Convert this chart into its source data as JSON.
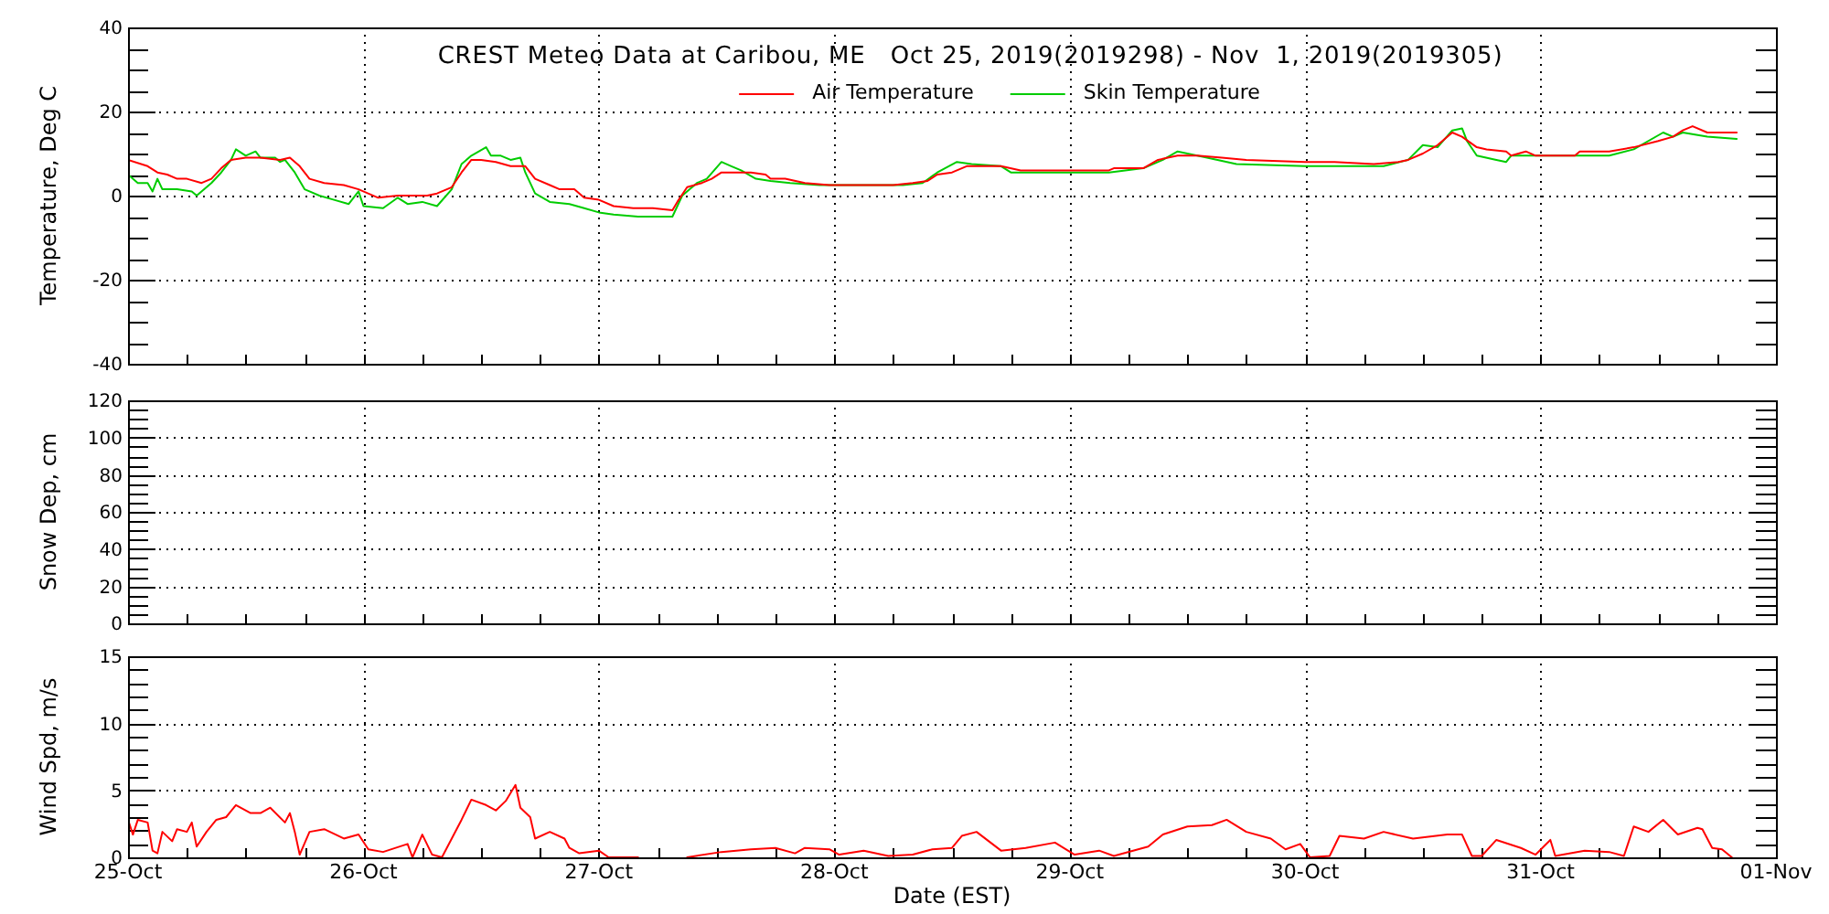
{
  "chart_data": [
    {
      "type": "line",
      "title": "CREST Meteo Data at Caribou, ME   Oct 25, 2019(2019298) - Nov  1, 2019(2019305)",
      "ylabel": "Temperature, Deg C",
      "legend": "top",
      "grid": true,
      "tick_labels": "y",
      "xlim": [
        "2019-10-25",
        "2019-11-01"
      ],
      "xticks": [
        {
          "value": "2019-10-25",
          "label": null
        },
        {
          "value": "2019-10-25T06:00",
          "label": null
        },
        {
          "value": "2019-10-25T12:00",
          "label": null
        },
        {
          "value": "2019-10-25T18:00",
          "label": null
        },
        {
          "value": "2019-10-26",
          "label": null
        },
        {
          "value": "2019-10-26T06:00",
          "label": null
        },
        {
          "value": "2019-10-26T12:00",
          "label": null
        },
        {
          "value": "2019-10-26T18:00",
          "label": null
        },
        {
          "value": "2019-10-27",
          "label": null
        },
        {
          "value": "2019-10-27T06:00",
          "label": null
        },
        {
          "value": "2019-10-27T12:00",
          "label": null
        },
        {
          "value": "2019-10-27T18:00",
          "label": null
        },
        {
          "value": "2019-10-28",
          "label": null
        },
        {
          "value": "2019-10-28T06:00",
          "label": null
        },
        {
          "value": "2019-10-28T12:00",
          "label": null
        },
        {
          "value": "2019-10-28T18:00",
          "label": null
        },
        {
          "value": "2019-10-29",
          "label": null
        },
        {
          "value": "2019-10-29T06:00",
          "label": null
        },
        {
          "value": "2019-10-29T12:00",
          "label": null
        },
        {
          "value": "2019-10-29T18:00",
          "label": null
        },
        {
          "value": "2019-10-30",
          "label": null
        },
        {
          "value": "2019-10-30T06:00",
          "label": null
        },
        {
          "value": "2019-10-30T12:00",
          "label": null
        },
        {
          "value": "2019-10-30T18:00",
          "label": null
        },
        {
          "value": "2019-10-31",
          "label": null
        },
        {
          "value": "2019-10-31T06:00",
          "label": null
        },
        {
          "value": "2019-10-31T12:00",
          "label": null
        },
        {
          "value": "2019-10-31T18:00",
          "label": null
        },
        {
          "value": "2019-11-01",
          "label": null
        }
      ],
      "ylim": [
        -40,
        40
      ],
      "yticks": [
        -40,
        {
          "value": -35,
          "label": null
        },
        {
          "value": -30,
          "label": null
        },
        {
          "value": -25,
          "label": null
        },
        -20,
        {
          "value": -15,
          "label": null
        },
        {
          "value": -10,
          "label": null
        },
        {
          "value": -5,
          "label": null
        },
        0,
        {
          "value": 5,
          "label": null
        },
        {
          "value": 10,
          "label": null
        },
        {
          "value": 15,
          "label": null
        },
        20,
        {
          "value": 25,
          "label": null
        },
        {
          "value": 30,
          "label": null
        },
        {
          "value": 35,
          "label": null
        },
        40
      ],
      "series": [
        {
          "name": "Air Temperature",
          "color": "#ff0000",
          "x": [
            "2019-10-25T00:00",
            "2019-10-25T02:00",
            "2019-10-25T03:00",
            "2019-10-25T04:00",
            "2019-10-25T05:00",
            "2019-10-25T06:00",
            "2019-10-25T07:30",
            "2019-10-25T08:30",
            "2019-10-25T09:30",
            "2019-10-25T10:30",
            "2019-10-25T12:00",
            "2019-10-25T13:30",
            "2019-10-25T15:30",
            "2019-10-25T16:30",
            "2019-10-25T17:30",
            "2019-10-25T18:30",
            "2019-10-25T20:00",
            "2019-10-25T22:00",
            "2019-10-25T23:30",
            "2019-10-26T01:30",
            "2019-10-26T03:30",
            "2019-10-26T06:30",
            "2019-10-26T07:30",
            "2019-10-26T09:00",
            "2019-10-26T10:00",
            "2019-10-26T11:00",
            "2019-10-26T12:00",
            "2019-10-26T13:30",
            "2019-10-26T15:00",
            "2019-10-26T16:30",
            "2019-10-26T17:30",
            "2019-10-26T19:00",
            "2019-10-26T20:00",
            "2019-10-26T21:30",
            "2019-10-26T22:30",
            "2019-10-27T00:00",
            "2019-10-27T01:30",
            "2019-10-27T03:30",
            "2019-10-27T05:30",
            "2019-10-27T07:30",
            "2019-10-27T08:00",
            "2019-10-27T09:00",
            "2019-10-27T10:30",
            "2019-10-27T11:30",
            "2019-10-27T12:30",
            "2019-10-27T15:30",
            "2019-10-27T17:00",
            "2019-10-27T17:30",
            "2019-10-27T19:00",
            "2019-10-27T21:00",
            "2019-10-27T23:30",
            "2019-10-28T02:00",
            "2019-10-28T06:00",
            "2019-10-28T08:00",
            "2019-10-28T09:30",
            "2019-10-28T10:30",
            "2019-10-28T12:00",
            "2019-10-28T13:30",
            "2019-10-28T17:00",
            "2019-10-28T19:00",
            "2019-10-28T23:00",
            "2019-10-29T04:00",
            "2019-10-29T04:30",
            "2019-10-29T07:30",
            "2019-10-29T09:00",
            "2019-10-29T11:00",
            "2019-10-29T13:00",
            "2019-10-29T15:30",
            "2019-10-29T18:00",
            "2019-10-30T00:00",
            "2019-10-30T03:00",
            "2019-10-30T07:00",
            "2019-10-30T09:30",
            "2019-10-30T10:30",
            "2019-10-30T12:00",
            "2019-10-30T13:30",
            "2019-10-30T15:00",
            "2019-10-30T16:00",
            "2019-10-30T17:30",
            "2019-10-30T18:30",
            "2019-10-30T20:30",
            "2019-10-30T21:00",
            "2019-10-30T22:30",
            "2019-10-30T23:30",
            "2019-10-31T03:30",
            "2019-10-31T04:00",
            "2019-10-31T07:00",
            "2019-10-31T09:30",
            "2019-10-31T12:00",
            "2019-10-31T13:30",
            "2019-10-31T14:30",
            "2019-10-31T15:30",
            "2019-10-31T17:00",
            "2019-10-31T20:00"
          ],
          "values": [
            8.5,
            7,
            5.5,
            5,
            4,
            4,
            3,
            4,
            6.5,
            8.5,
            9,
            9,
            8.5,
            9,
            7,
            4,
            3,
            2.5,
            1.5,
            -0.5,
            0,
            0,
            0.5,
            2,
            5.5,
            8.5,
            8.5,
            8,
            7,
            7,
            4,
            2.5,
            1.5,
            1.5,
            -0.5,
            -1,
            -2.5,
            -3,
            -3,
            -3.5,
            -1.5,
            2,
            3,
            4,
            5.5,
            5.5,
            5,
            4,
            4,
            3,
            2.5,
            2.5,
            2.5,
            3,
            3.5,
            5,
            5.5,
            7,
            7,
            6,
            6,
            6,
            6.5,
            6.5,
            8.5,
            9.5,
            9.5,
            9,
            8.5,
            8,
            8,
            7.5,
            8,
            8.5,
            10,
            12,
            15,
            14,
            11.5,
            11,
            10.5,
            9.5,
            10.5,
            9.5,
            9.5,
            10.5,
            10.5,
            11.5,
            13,
            14,
            15.5,
            16.5,
            15,
            15
          ]
        },
        {
          "name": "Skin Temperature",
          "color": "#00cc00",
          "x": [
            "2019-10-25T00:00",
            "2019-10-25T01:00",
            "2019-10-25T02:00",
            "2019-10-25T02:30",
            "2019-10-25T03:00",
            "2019-10-25T03:30",
            "2019-10-25T05:00",
            "2019-10-25T06:30",
            "2019-10-25T07:00",
            "2019-10-25T08:30",
            "2019-10-25T09:30",
            "2019-10-25T10:30",
            "2019-10-25T11:00",
            "2019-10-25T12:00",
            "2019-10-25T13:00",
            "2019-10-25T13:30",
            "2019-10-25T15:00",
            "2019-10-25T15:30",
            "2019-10-25T16:00",
            "2019-10-25T17:00",
            "2019-10-25T18:00",
            "2019-10-25T18:30",
            "2019-10-25T19:30",
            "2019-10-25T21:00",
            "2019-10-25T22:30",
            "2019-10-25T23:30",
            "2019-10-26T00:00",
            "2019-10-26T02:00",
            "2019-10-26T03:30",
            "2019-10-26T04:30",
            "2019-10-26T06:00",
            "2019-10-26T07:30",
            "2019-10-26T09:00",
            "2019-10-26T10:00",
            "2019-10-26T11:00",
            "2019-10-26T12:30",
            "2019-10-26T13:00",
            "2019-10-26T14:00",
            "2019-10-26T15:00",
            "2019-10-26T16:00",
            "2019-10-26T16:30",
            "2019-10-26T17:30",
            "2019-10-26T19:00",
            "2019-10-26T21:00",
            "2019-10-26T22:30",
            "2019-10-27T00:00",
            "2019-10-27T01:30",
            "2019-10-27T04:00",
            "2019-10-27T06:00",
            "2019-10-27T07:30",
            "2019-10-27T08:30",
            "2019-10-27T10:00",
            "2019-10-27T11:00",
            "2019-10-27T12:30",
            "2019-10-27T13:30",
            "2019-10-27T14:30",
            "2019-10-27T16:00",
            "2019-10-27T17:30",
            "2019-10-27T19:30",
            "2019-10-27T22:30",
            "2019-10-28T02:00",
            "2019-10-28T07:00",
            "2019-10-28T09:00",
            "2019-10-28T10:30",
            "2019-10-28T12:30",
            "2019-10-28T14:00",
            "2019-10-28T17:00",
            "2019-10-28T18:00",
            "2019-10-29T04:00",
            "2019-10-29T07:30",
            "2019-10-29T09:30",
            "2019-10-29T11:00",
            "2019-10-29T14:00",
            "2019-10-29T17:00",
            "2019-10-30T00:00",
            "2019-10-30T02:30",
            "2019-10-30T06:00",
            "2019-10-30T08:00",
            "2019-10-30T10:30",
            "2019-10-30T12:00",
            "2019-10-30T13:30",
            "2019-10-30T15:00",
            "2019-10-30T16:00",
            "2019-10-30T16:30",
            "2019-10-30T17:30",
            "2019-10-30T19:30",
            "2019-10-30T20:30",
            "2019-10-30T21:00",
            "2019-10-31T03:30",
            "2019-10-31T07:00",
            "2019-10-31T09:30",
            "2019-10-31T12:30",
            "2019-10-31T13:30",
            "2019-10-31T14:30",
            "2019-10-31T17:00",
            "2019-10-31T20:00"
          ],
          "values": [
            5,
            3,
            3,
            1,
            4,
            1.5,
            1.5,
            1,
            0,
            3,
            5.5,
            8.5,
            11,
            9.5,
            10.5,
            9,
            9,
            8,
            8.5,
            5.5,
            1.5,
            1,
            0,
            -1,
            -2,
            1,
            -2.5,
            -3,
            -0.5,
            -2,
            -1.5,
            -2.5,
            1.5,
            7.5,
            9.5,
            11.5,
            9.5,
            9.5,
            8.5,
            9,
            5.5,
            0.5,
            -1.5,
            -2,
            -3,
            -4,
            -4.5,
            -5,
            -5,
            -5,
            0,
            3,
            4,
            8,
            7,
            6,
            4,
            3.5,
            3,
            2.5,
            2.5,
            2.5,
            3,
            5.5,
            8,
            7.5,
            7,
            5.5,
            5.5,
            6.5,
            8.5,
            10.5,
            9,
            7.5,
            7,
            7,
            7,
            7,
            8.5,
            12,
            11.5,
            15.5,
            16,
            13,
            9.5,
            8.5,
            8,
            9.5,
            9.5,
            9.5,
            11,
            15,
            14,
            15,
            14,
            13.5
          ]
        }
      ]
    },
    {
      "type": "line",
      "ylabel": "Snow Dep, cm",
      "grid": true,
      "tick_labels": "y",
      "xlim": [
        "2019-10-25",
        "2019-11-01"
      ],
      "xticks": [
        {
          "value": "2019-10-25",
          "label": null
        },
        {
          "value": "2019-10-25T06:00",
          "label": null
        },
        {
          "value": "2019-10-25T12:00",
          "label": null
        },
        {
          "value": "2019-10-25T18:00",
          "label": null
        },
        {
          "value": "2019-10-26",
          "label": null
        },
        {
          "value": "2019-10-26T06:00",
          "label": null
        },
        {
          "value": "2019-10-26T12:00",
          "label": null
        },
        {
          "value": "2019-10-26T18:00",
          "label": null
        },
        {
          "value": "2019-10-27",
          "label": null
        },
        {
          "value": "2019-10-27T06:00",
          "label": null
        },
        {
          "value": "2019-10-27T12:00",
          "label": null
        },
        {
          "value": "2019-10-27T18:00",
          "label": null
        },
        {
          "value": "2019-10-28",
          "label": null
        },
        {
          "value": "2019-10-28T06:00",
          "label": null
        },
        {
          "value": "2019-10-28T12:00",
          "label": null
        },
        {
          "value": "2019-10-28T18:00",
          "label": null
        },
        {
          "value": "2019-10-29",
          "label": null
        },
        {
          "value": "2019-10-29T06:00",
          "label": null
        },
        {
          "value": "2019-10-29T12:00",
          "label": null
        },
        {
          "value": "2019-10-29T18:00",
          "label": null
        },
        {
          "value": "2019-10-30",
          "label": null
        },
        {
          "value": "2019-10-30T06:00",
          "label": null
        },
        {
          "value": "2019-10-30T12:00",
          "label": null
        },
        {
          "value": "2019-10-30T18:00",
          "label": null
        },
        {
          "value": "2019-10-31",
          "label": null
        },
        {
          "value": "2019-10-31T06:00",
          "label": null
        },
        {
          "value": "2019-10-31T12:00",
          "label": null
        },
        {
          "value": "2019-10-31T18:00",
          "label": null
        },
        {
          "value": "2019-11-01",
          "label": null
        }
      ],
      "ylim": [
        0,
        120
      ],
      "yticks": [
        0,
        {
          "value": 5,
          "label": null
        },
        {
          "value": 10,
          "label": null
        },
        {
          "value": 15,
          "label": null
        },
        20,
        {
          "value": 25,
          "label": null
        },
        {
          "value": 30,
          "label": null
        },
        {
          "value": 35,
          "label": null
        },
        40,
        {
          "value": 45,
          "label": null
        },
        {
          "value": 50,
          "label": null
        },
        {
          "value": 55,
          "label": null
        },
        60,
        {
          "value": 65,
          "label": null
        },
        {
          "value": 70,
          "label": null
        },
        {
          "value": 75,
          "label": null
        },
        80,
        {
          "value": 85,
          "label": null
        },
        {
          "value": 90,
          "label": null
        },
        {
          "value": 95,
          "label": null
        },
        100,
        {
          "value": 105,
          "label": null
        },
        {
          "value": 110,
          "label": null
        },
        {
          "value": 115,
          "label": null
        },
        120
      ]
    },
    {
      "type": "line",
      "xlabel": "Date (EST)",
      "ylabel": "Wind Spd, m/s",
      "grid": true,
      "xlim": [
        "2019-10-25",
        "2019-11-01"
      ],
      "xticks": [
        {
          "value": "2019-10-25",
          "label": "25-Oct"
        },
        {
          "value": "2019-10-25T06:00",
          "label": null
        },
        {
          "value": "2019-10-25T12:00",
          "label": null
        },
        {
          "value": "2019-10-25T18:00",
          "label": null
        },
        {
          "value": "2019-10-26",
          "label": "26-Oct"
        },
        {
          "value": "2019-10-26T06:00",
          "label": null
        },
        {
          "value": "2019-10-26T12:00",
          "label": null
        },
        {
          "value": "2019-10-26T18:00",
          "label": null
        },
        {
          "value": "2019-10-27",
          "label": "27-Oct"
        },
        {
          "value": "2019-10-27T06:00",
          "label": null
        },
        {
          "value": "2019-10-27T12:00",
          "label": null
        },
        {
          "value": "2019-10-27T18:00",
          "label": null
        },
        {
          "value": "2019-10-28",
          "label": "28-Oct"
        },
        {
          "value": "2019-10-28T06:00",
          "label": null
        },
        {
          "value": "2019-10-28T12:00",
          "label": null
        },
        {
          "value": "2019-10-28T18:00",
          "label": null
        },
        {
          "value": "2019-10-29",
          "label": "29-Oct"
        },
        {
          "value": "2019-10-29T06:00",
          "label": null
        },
        {
          "value": "2019-10-29T12:00",
          "label": null
        },
        {
          "value": "2019-10-29T18:00",
          "label": null
        },
        {
          "value": "2019-10-30",
          "label": "30-Oct"
        },
        {
          "value": "2019-10-30T06:00",
          "label": null
        },
        {
          "value": "2019-10-30T12:00",
          "label": null
        },
        {
          "value": "2019-10-30T18:00",
          "label": null
        },
        {
          "value": "2019-10-31",
          "label": "31-Oct"
        },
        {
          "value": "2019-10-31T06:00",
          "label": null
        },
        {
          "value": "2019-10-31T12:00",
          "label": null
        },
        {
          "value": "2019-10-31T18:00",
          "label": null
        },
        {
          "value": "2019-11-01",
          "label": "01-Nov"
        }
      ],
      "ylim": [
        0,
        15
      ],
      "yticks": [
        0,
        {
          "value": 1,
          "label": null
        },
        {
          "value": 2,
          "label": null
        },
        {
          "value": 3,
          "label": null
        },
        {
          "value": 4,
          "label": null
        },
        5,
        {
          "value": 6,
          "label": null
        },
        {
          "value": 7,
          "label": null
        },
        {
          "value": 8,
          "label": null
        },
        {
          "value": 9,
          "label": null
        },
        10,
        {
          "value": 11,
          "label": null
        },
        {
          "value": 12,
          "label": null
        },
        {
          "value": 13,
          "label": null
        },
        {
          "value": 14,
          "label": null
        },
        15
      ],
      "series": [
        {
          "color": "#ff0000",
          "x": [
            "2019-10-25T00:00",
            "2019-10-25T00:30",
            "2019-10-25T01:00",
            "2019-10-25T02:00",
            "2019-10-25T02:30",
            "2019-10-25T03:00",
            "2019-10-25T03:30",
            "2019-10-25T04:30",
            "2019-10-25T05:00",
            "2019-10-25T06:00",
            "2019-10-25T06:30",
            "2019-10-25T07:00",
            "2019-10-25T08:00",
            "2019-10-25T09:00",
            "2019-10-25T10:00",
            "2019-10-25T11:00",
            "2019-10-25T12:30",
            "2019-10-25T13:30",
            "2019-10-25T14:30",
            "2019-10-25T16:00",
            "2019-10-25T16:30",
            "2019-10-25T17:00",
            "2019-10-25T17:30",
            "2019-10-25T18:30",
            "2019-10-25T20:00",
            "2019-10-25T22:00",
            "2019-10-25T23:30",
            "2019-10-26T00:30",
            "2019-10-26T02:00",
            "2019-10-26T04:30",
            "2019-10-26T05:00",
            "2019-10-26T06:00",
            "2019-10-26T07:00",
            "2019-10-26T08:00",
            "2019-10-26T09:00",
            "2019-10-26T10:00",
            "2019-10-26T11:00",
            "2019-10-26T12:30",
            "2019-10-26T13:30",
            "2019-10-26T14:30",
            "2019-10-26T15:30",
            "2019-10-26T16:00",
            "2019-10-26T17:00",
            "2019-10-26T17:30",
            "2019-10-26T19:00",
            "2019-10-26T20:30",
            "2019-10-26T21:00",
            "2019-10-26T22:00",
            "2019-10-27T00:00",
            "2019-10-27T01:00",
            "2019-10-27T04:00",
            "2019-10-27T06:00",
            "2019-10-27T09:00",
            "2019-10-27T12:30",
            "2019-10-27T15:30",
            "2019-10-27T18:00",
            "2019-10-27T20:00",
            "2019-10-27T21:00",
            "2019-10-27T23:30",
            "2019-10-28T00:30",
            "2019-10-28T03:00",
            "2019-10-28T05:30",
            "2019-10-28T08:00",
            "2019-10-28T10:00",
            "2019-10-28T12:00",
            "2019-10-28T13:00",
            "2019-10-28T14:30",
            "2019-10-28T17:00",
            "2019-10-28T19:30",
            "2019-10-28T22:30",
            "2019-10-29T00:30",
            "2019-10-29T03:00",
            "2019-10-29T04:30",
            "2019-10-29T08:00",
            "2019-10-29T09:30",
            "2019-10-29T12:00",
            "2019-10-29T14:30",
            "2019-10-29T16:00",
            "2019-10-29T18:00",
            "2019-10-29T20:30",
            "2019-10-29T22:00",
            "2019-10-29T23:30",
            "2019-10-30T00:30",
            "2019-10-30T02:30",
            "2019-10-30T03:30",
            "2019-10-30T06:00",
            "2019-10-30T08:00",
            "2019-10-30T11:00",
            "2019-10-30T14:30",
            "2019-10-30T16:00",
            "2019-10-30T17:00",
            "2019-10-30T18:00",
            "2019-10-30T19:30",
            "2019-10-30T22:00",
            "2019-10-30T23:30",
            "2019-10-31T01:00",
            "2019-10-31T01:30",
            "2019-10-31T04:30",
            "2019-10-31T07:00",
            "2019-10-31T08:30",
            "2019-10-31T09:30",
            "2019-10-31T11:00",
            "2019-10-31T12:30",
            "2019-10-31T14:00",
            "2019-10-31T16:00",
            "2019-10-31T16:30",
            "2019-10-31T17:30",
            "2019-10-31T18:30",
            "2019-10-31T19:30"
          ],
          "values": [
            2.8,
            1.7,
            2.8,
            2.6,
            0.5,
            0.3,
            1.9,
            1.2,
            2.1,
            1.9,
            2.6,
            0.8,
            1.9,
            2.8,
            3.0,
            3.9,
            3.3,
            3.3,
            3.7,
            2.6,
            3.3,
            1.9,
            0.2,
            1.9,
            2.1,
            1.4,
            1.7,
            0.6,
            0.4,
            1.0,
            0,
            1.7,
            0.2,
            0,
            1.4,
            2.8,
            4.3,
            3.9,
            3.5,
            4.2,
            5.4,
            3.7,
            3.0,
            1.4,
            1.9,
            1.4,
            0.7,
            0.3,
            0.5,
            0,
            0,
            null,
            0,
            0.4,
            0.6,
            0.7,
            0.3,
            0.7,
            0.6,
            0.2,
            0.5,
            0.1,
            0.2,
            0.6,
            0.7,
            1.6,
            1.9,
            0.5,
            0.7,
            1.1,
            0.2,
            0.5,
            0.1,
            0.8,
            1.7,
            2.3,
            2.4,
            2.8,
            1.9,
            1.4,
            0.6,
            1.0,
            0,
            0.1,
            1.6,
            1.4,
            1.9,
            1.4,
            1.7,
            1.7,
            0.1,
            0.1,
            1.3,
            0.7,
            0.2,
            1.3,
            0.1,
            0.5,
            0.4,
            0.1,
            2.3,
            1.9,
            2.8,
            1.7,
            2.2,
            2.1,
            0.7,
            0.6,
            0
          ]
        }
      ]
    }
  ]
}
